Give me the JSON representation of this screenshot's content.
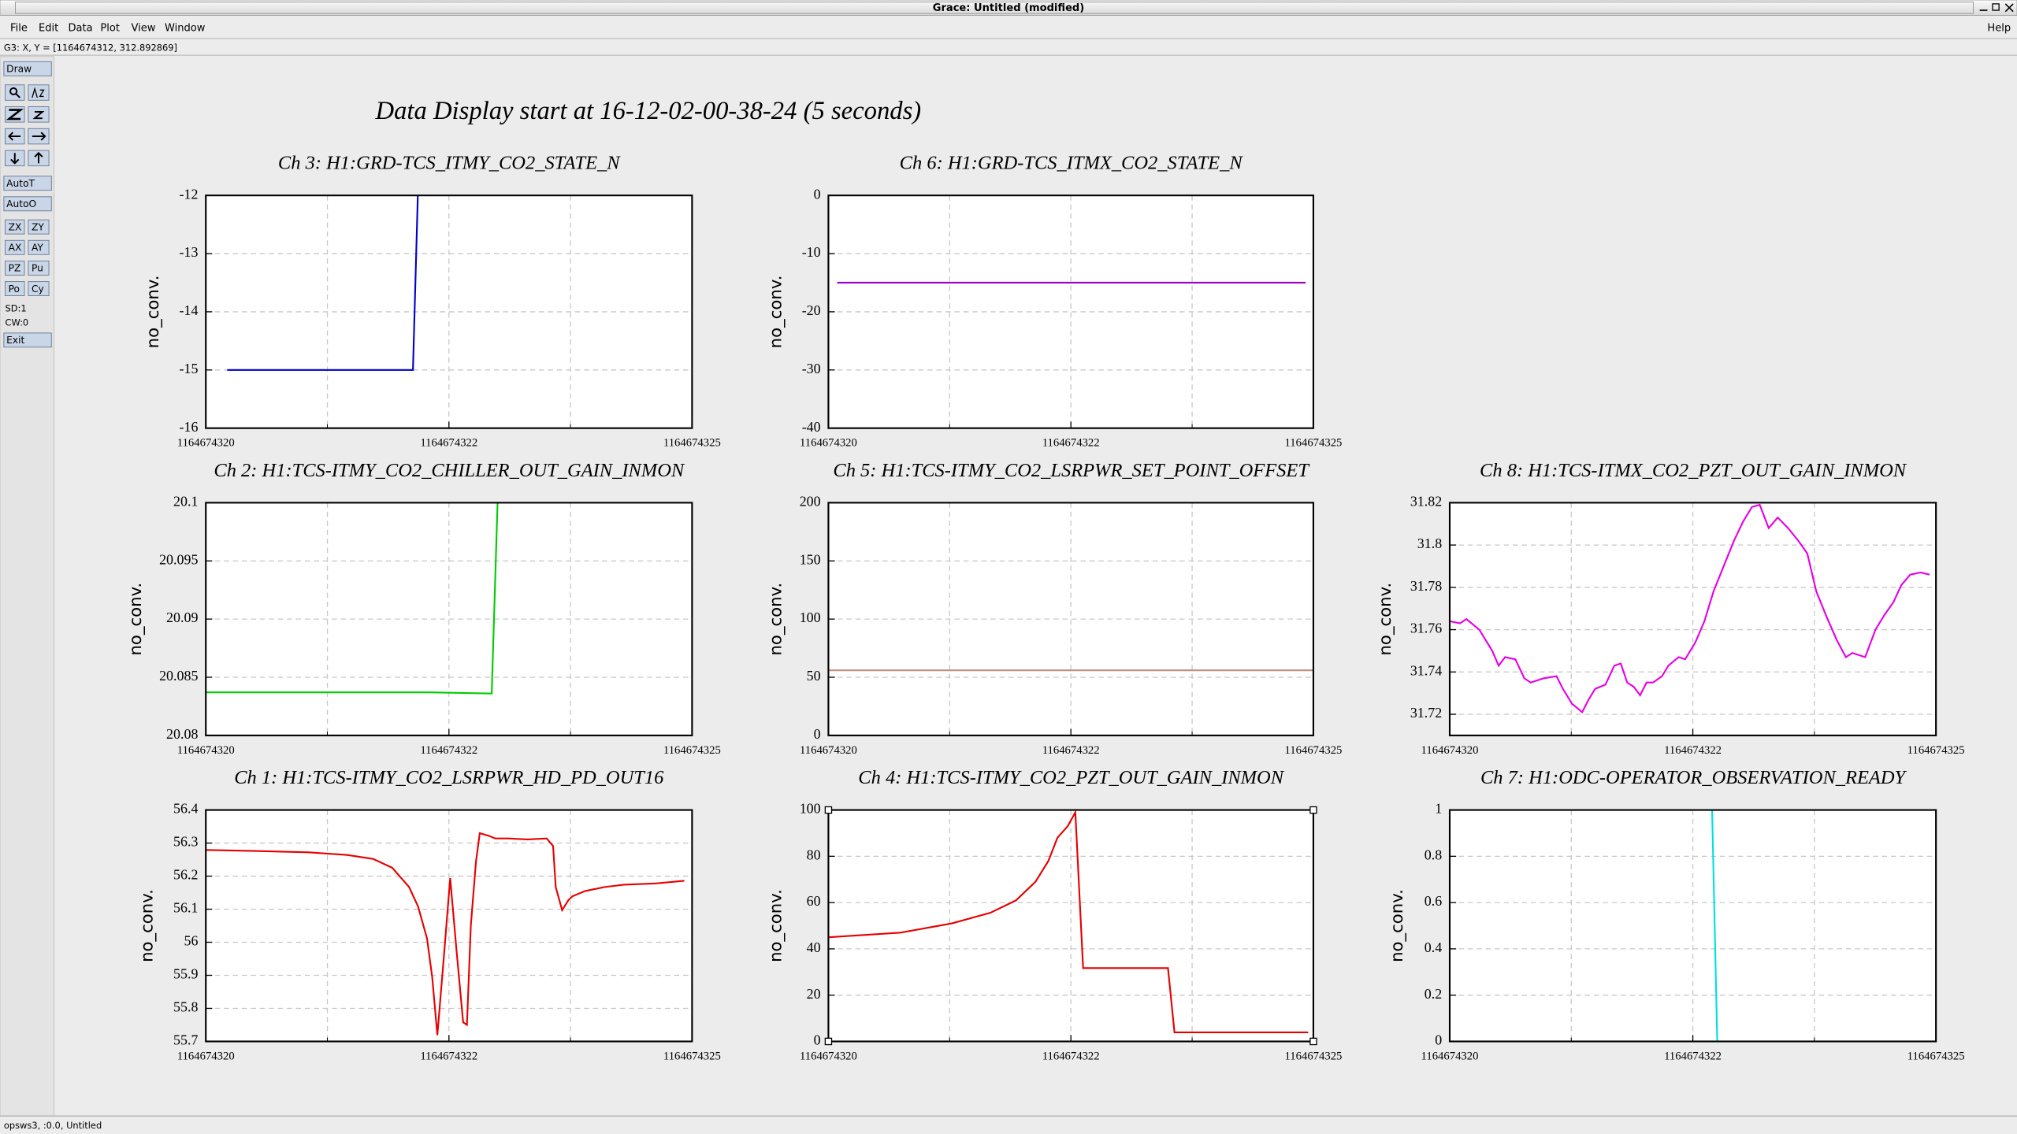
{
  "window": {
    "title": "Grace: Untitled (modified)"
  },
  "menu": [
    "File",
    "Edit",
    "Data",
    "Plot",
    "View",
    "Window"
  ],
  "help": "Help",
  "locator": "G3: X, Y = [1164674312, 312.892869]",
  "toolbar": {
    "buttons": [
      "Draw",
      "AutoT",
      "AutoO",
      "ZX",
      "ZY",
      "AX",
      "AY",
      "PZ",
      "Pu",
      "Po",
      "Cy",
      "Exit"
    ],
    "status": [
      "SD:1",
      "CW:0"
    ]
  },
  "statusbar": "opsws3, :0.0, Untitled",
  "title": "Data Display start at 16-12-02-00-38-24 (5 seconds)",
  "chart_data": [
    {
      "type": "line",
      "title": "Ch 3: H1:GRD-TCS_ITMY_CO2_STATE_N",
      "ylabel": "no_conv.",
      "color": "#0000cc",
      "grid": true,
      "xlim": [
        1164674320,
        1164674325
      ],
      "xticks": [
        1164674320,
        {
          "value": 1164674322.5,
          "label": "1164674322"
        },
        1164674325
      ],
      "xminorticks": [
        1164674321.25,
        1164674323.75
      ],
      "ylim": [
        -16,
        -12
      ],
      "yticks": [
        -16,
        -15,
        -14,
        -13,
        -12
      ],
      "x": [
        1164674320.22,
        1164674322.13,
        1164674322.18
      ],
      "values": [
        -15,
        -15,
        -12
      ]
    },
    {
      "type": "line",
      "title": "Ch 6: H1:GRD-TCS_ITMX_CO2_STATE_N",
      "ylabel": "no_conv.",
      "color": "#9a00c8",
      "grid": true,
      "xlim": [
        1164674320,
        1164674325
      ],
      "xticks": [
        1164674320,
        {
          "value": 1164674322.5,
          "label": "1164674322"
        },
        1164674325
      ],
      "xminorticks": [
        1164674321.25,
        1164674323.75
      ],
      "ylim": [
        -40,
        0
      ],
      "yticks": [
        -40,
        -30,
        -20,
        -10,
        0
      ],
      "x": [
        1164674320.09,
        1164674324.92
      ],
      "values": [
        -15,
        -15
      ]
    },
    {
      "type": "line",
      "title": "Ch 2: H1:TCS-ITMY_CO2_CHILLER_OUT_GAIN_INMON",
      "ylabel": "no_conv.",
      "color": "#00cc00",
      "grid": true,
      "xlim": [
        1164674320,
        1164674325
      ],
      "xticks": [
        1164674320,
        {
          "value": 1164674322.5,
          "label": "1164674322"
        },
        1164674325
      ],
      "xminorticks": [
        1164674321.25,
        1164674323.75
      ],
      "ylim": [
        20.08,
        20.1
      ],
      "yticks": [
        20.08,
        20.085,
        20.09,
        20.095,
        20.1
      ],
      "x": [
        1164674320,
        1164674322.31,
        1164674322.94,
        1164674323.0
      ],
      "values": [
        20.0837,
        20.0837,
        20.0836,
        20.1
      ]
    },
    {
      "type": "line",
      "title": "Ch 5: H1:TCS-ITMY_CO2_LSRPWR_SET_POINT_OFFSET",
      "ylabel": "no_conv.",
      "color": "#bc8f7f",
      "grid": true,
      "xlim": [
        1164674320,
        1164674325
      ],
      "xticks": [
        1164674320,
        {
          "value": 1164674322.5,
          "label": "1164674322"
        },
        1164674325
      ],
      "xminorticks": [
        1164674321.25,
        1164674323.75
      ],
      "ylim": [
        0,
        200
      ],
      "yticks": [
        0,
        50,
        100,
        150,
        200
      ],
      "x": [
        1164674320,
        1164674325
      ],
      "values": [
        56,
        56
      ]
    },
    {
      "type": "line",
      "title": "Ch 8: H1:TCS-ITMX_CO2_PZT_OUT_GAIN_INMON",
      "ylabel": "no_conv.",
      "color": "#e600e6",
      "grid": true,
      "xlim": [
        1164674320,
        1164674325
      ],
      "xticks": [
        1164674320,
        {
          "value": 1164674322.5,
          "label": "1164674322"
        },
        1164674325
      ],
      "xminorticks": [
        1164674321.25,
        1164674323.75
      ],
      "ylim": [
        31.71,
        31.82
      ],
      "yticks": [
        31.72,
        31.74,
        31.76,
        31.78,
        31.8,
        31.82
      ],
      "x": [
        1164674320,
        1164674320.106,
        1164674320.172,
        1164674320.304,
        1164674320.437,
        1164674320.503,
        1164674320.569,
        1164674320.675,
        1164674320.767,
        1164674320.833,
        1164674320.966,
        1164674321.098,
        1164674321.164,
        1164674321.257,
        1164674321.362,
        1164674321.429,
        1164674321.495,
        1164674321.601,
        1164674321.693,
        1164674321.759,
        1164674321.825,
        1164674321.892,
        1164674321.958,
        1164674322.024,
        1164674322.09,
        1164674322.183,
        1164674322.249,
        1164674322.354,
        1164674322.421,
        1164674322.526,
        1164674322.619,
        1164674322.712,
        1164674322.817,
        1164674322.923,
        1164674323.016,
        1164674323.108,
        1164674323.188,
        1164674323.28,
        1164674323.373,
        1164674323.479,
        1164674323.585,
        1164674323.677,
        1164674323.77,
        1164674323.876,
        1164674323.981,
        1164674324.074,
        1164674324.14,
        1164674324.272,
        1164674324.378,
        1164674324.471,
        1164674324.563,
        1164674324.643,
        1164674324.735,
        1164674324.841,
        1164674324.934
      ],
      "values": [
        31.764,
        31.763,
        31.765,
        31.76,
        31.75,
        31.743,
        31.747,
        31.746,
        31.737,
        31.735,
        31.737,
        31.738,
        31.732,
        31.725,
        31.721,
        31.727,
        31.732,
        31.734,
        31.743,
        31.744,
        31.735,
        31.733,
        31.729,
        31.735,
        31.735,
        31.738,
        31.743,
        31.747,
        31.746,
        31.754,
        31.764,
        31.778,
        31.79,
        31.802,
        31.811,
        31.818,
        31.819,
        31.808,
        31.813,
        31.808,
        31.802,
        31.796,
        31.778,
        31.766,
        31.755,
        31.747,
        31.749,
        31.747,
        31.76,
        31.767,
        31.773,
        31.781,
        31.786,
        31.787,
        31.786
      ]
    },
    {
      "type": "line",
      "title": "Ch 1: H1:TCS-ITMY_CO2_LSRPWR_HD_PD_OUT16",
      "ylabel": "no_conv.",
      "color": "#e60000",
      "grid": true,
      "xlim": [
        1164674320,
        1164674325
      ],
      "xticks": [
        1164674320,
        {
          "value": 1164674322.5,
          "label": "1164674322"
        },
        1164674325
      ],
      "xminorticks": [
        1164674321.25,
        1164674323.75
      ],
      "ylim": [
        55.7,
        56.4
      ],
      "yticks": [
        55.7,
        55.8,
        55.9,
        56,
        56.1,
        56.2,
        56.3,
        56.4
      ],
      "x": [
        1164674320,
        1164674320.529,
        1164674321.058,
        1164674321.455,
        1164674321.72,
        1164674321.918,
        1164674322.09,
        1164674322.183,
        1164674322.275,
        1164674322.328,
        1164674322.381,
        1164674322.447,
        1164674322.513,
        1164674322.579,
        1164674322.646,
        1164674322.685,
        1164674322.725,
        1164674322.778,
        1164674322.817,
        1164674322.91,
        1164674322.976,
        1164674323.108,
        1164674323.307,
        1164674323.505,
        1164674323.571,
        1164674323.598,
        1164674323.664,
        1164674323.73,
        1164674323.77,
        1164674323.902,
        1164674324.101,
        1164674324.299,
        1164674324.63,
        1164674324.921
      ],
      "values": [
        56.279,
        56.276,
        56.272,
        56.264,
        56.252,
        56.225,
        56.167,
        56.108,
        56.011,
        55.894,
        55.719,
        55.953,
        56.194,
        55.972,
        55.758,
        55.75,
        56.05,
        56.244,
        56.33,
        56.322,
        56.314,
        56.314,
        56.311,
        56.314,
        56.291,
        56.167,
        56.097,
        56.128,
        56.139,
        56.155,
        56.167,
        56.174,
        56.178,
        56.186
      ]
    },
    {
      "type": "line",
      "title": "Ch 4: H1:TCS-ITMY_CO2_PZT_OUT_GAIN_INMON",
      "ylabel": "no_conv.",
      "color": "#e60000",
      "grid": true,
      "xlim": [
        1164674320,
        1164674325
      ],
      "xticks": [
        1164674320,
        {
          "value": 1164674322.5,
          "label": "1164674322"
        },
        1164674325
      ],
      "xminorticks": [
        1164674321.25,
        1164674323.75
      ],
      "ylim": [
        0,
        100
      ],
      "yticks": [
        0,
        20,
        40,
        60,
        80,
        100
      ],
      "x": [
        1164674320,
        1164674320.743,
        1164674321.273,
        1164674321.671,
        1164674321.936,
        1164674322.135,
        1164674322.268,
        1164674322.361,
        1164674322.467,
        1164674322.546,
        1164674322.626,
        1164674323.501,
        1164674323.568,
        1164674324.947
      ],
      "values": [
        45,
        47,
        51,
        55.6,
        61,
        69,
        78,
        88,
        93,
        99,
        31.7,
        31.7,
        3.9,
        3.9
      ]
    },
    {
      "type": "line",
      "title": "Ch 7: H1:ODC-OPERATOR_OBSERVATION_READY",
      "ylabel": "no_conv.",
      "color": "#00e0e0",
      "grid": true,
      "xlim": [
        1164674320,
        1164674325
      ],
      "xticks": [
        1164674320,
        {
          "value": 1164674322.5,
          "label": "1164674322"
        },
        1164674325
      ],
      "xminorticks": [
        1164674321.25,
        1164674323.75
      ],
      "ylim": [
        0,
        1
      ],
      "yticks": [
        0,
        0.2,
        0.4,
        0.6,
        0.8,
        1
      ],
      "x": [
        1164674322.698,
        1164674322.751
      ],
      "values": [
        1,
        0
      ]
    }
  ]
}
